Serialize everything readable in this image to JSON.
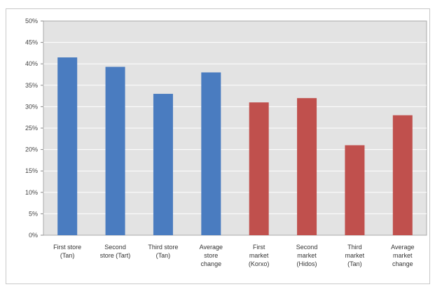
{
  "chart_data": {
    "type": "bar",
    "title": "",
    "xlabel": "",
    "ylabel": "",
    "ylim": [
      0,
      50
    ],
    "y_ticks": [
      "0%",
      "5%",
      "10%",
      "15%",
      "20%",
      "25%",
      "30%",
      "35%",
      "40%",
      "45%",
      "50%"
    ],
    "grid": true,
    "legend": "none",
    "categories": [
      [
        "First store",
        "(Tan)"
      ],
      [
        "Second",
        "store (Tart)"
      ],
      [
        "Third store",
        "(Tan)"
      ],
      [
        "Average",
        "store",
        "change"
      ],
      [
        "First",
        "market",
        "(Korxo)"
      ],
      [
        "Second",
        "market",
        "(Hidos)"
      ],
      [
        "Third",
        "market",
        "(Tan)"
      ],
      [
        "Average",
        "market",
        "change"
      ]
    ],
    "values": [
      41.5,
      39.3,
      33,
      38,
      31,
      32,
      21,
      28
    ],
    "bar_colors": [
      "#4a7cc0",
      "#4a7cc0",
      "#4a7cc0",
      "#4a7cc0",
      "#c0504d",
      "#c0504d",
      "#c0504d",
      "#c0504d"
    ],
    "plot_background": "#e3e3e3",
    "gridline_color": "#ffffff"
  }
}
